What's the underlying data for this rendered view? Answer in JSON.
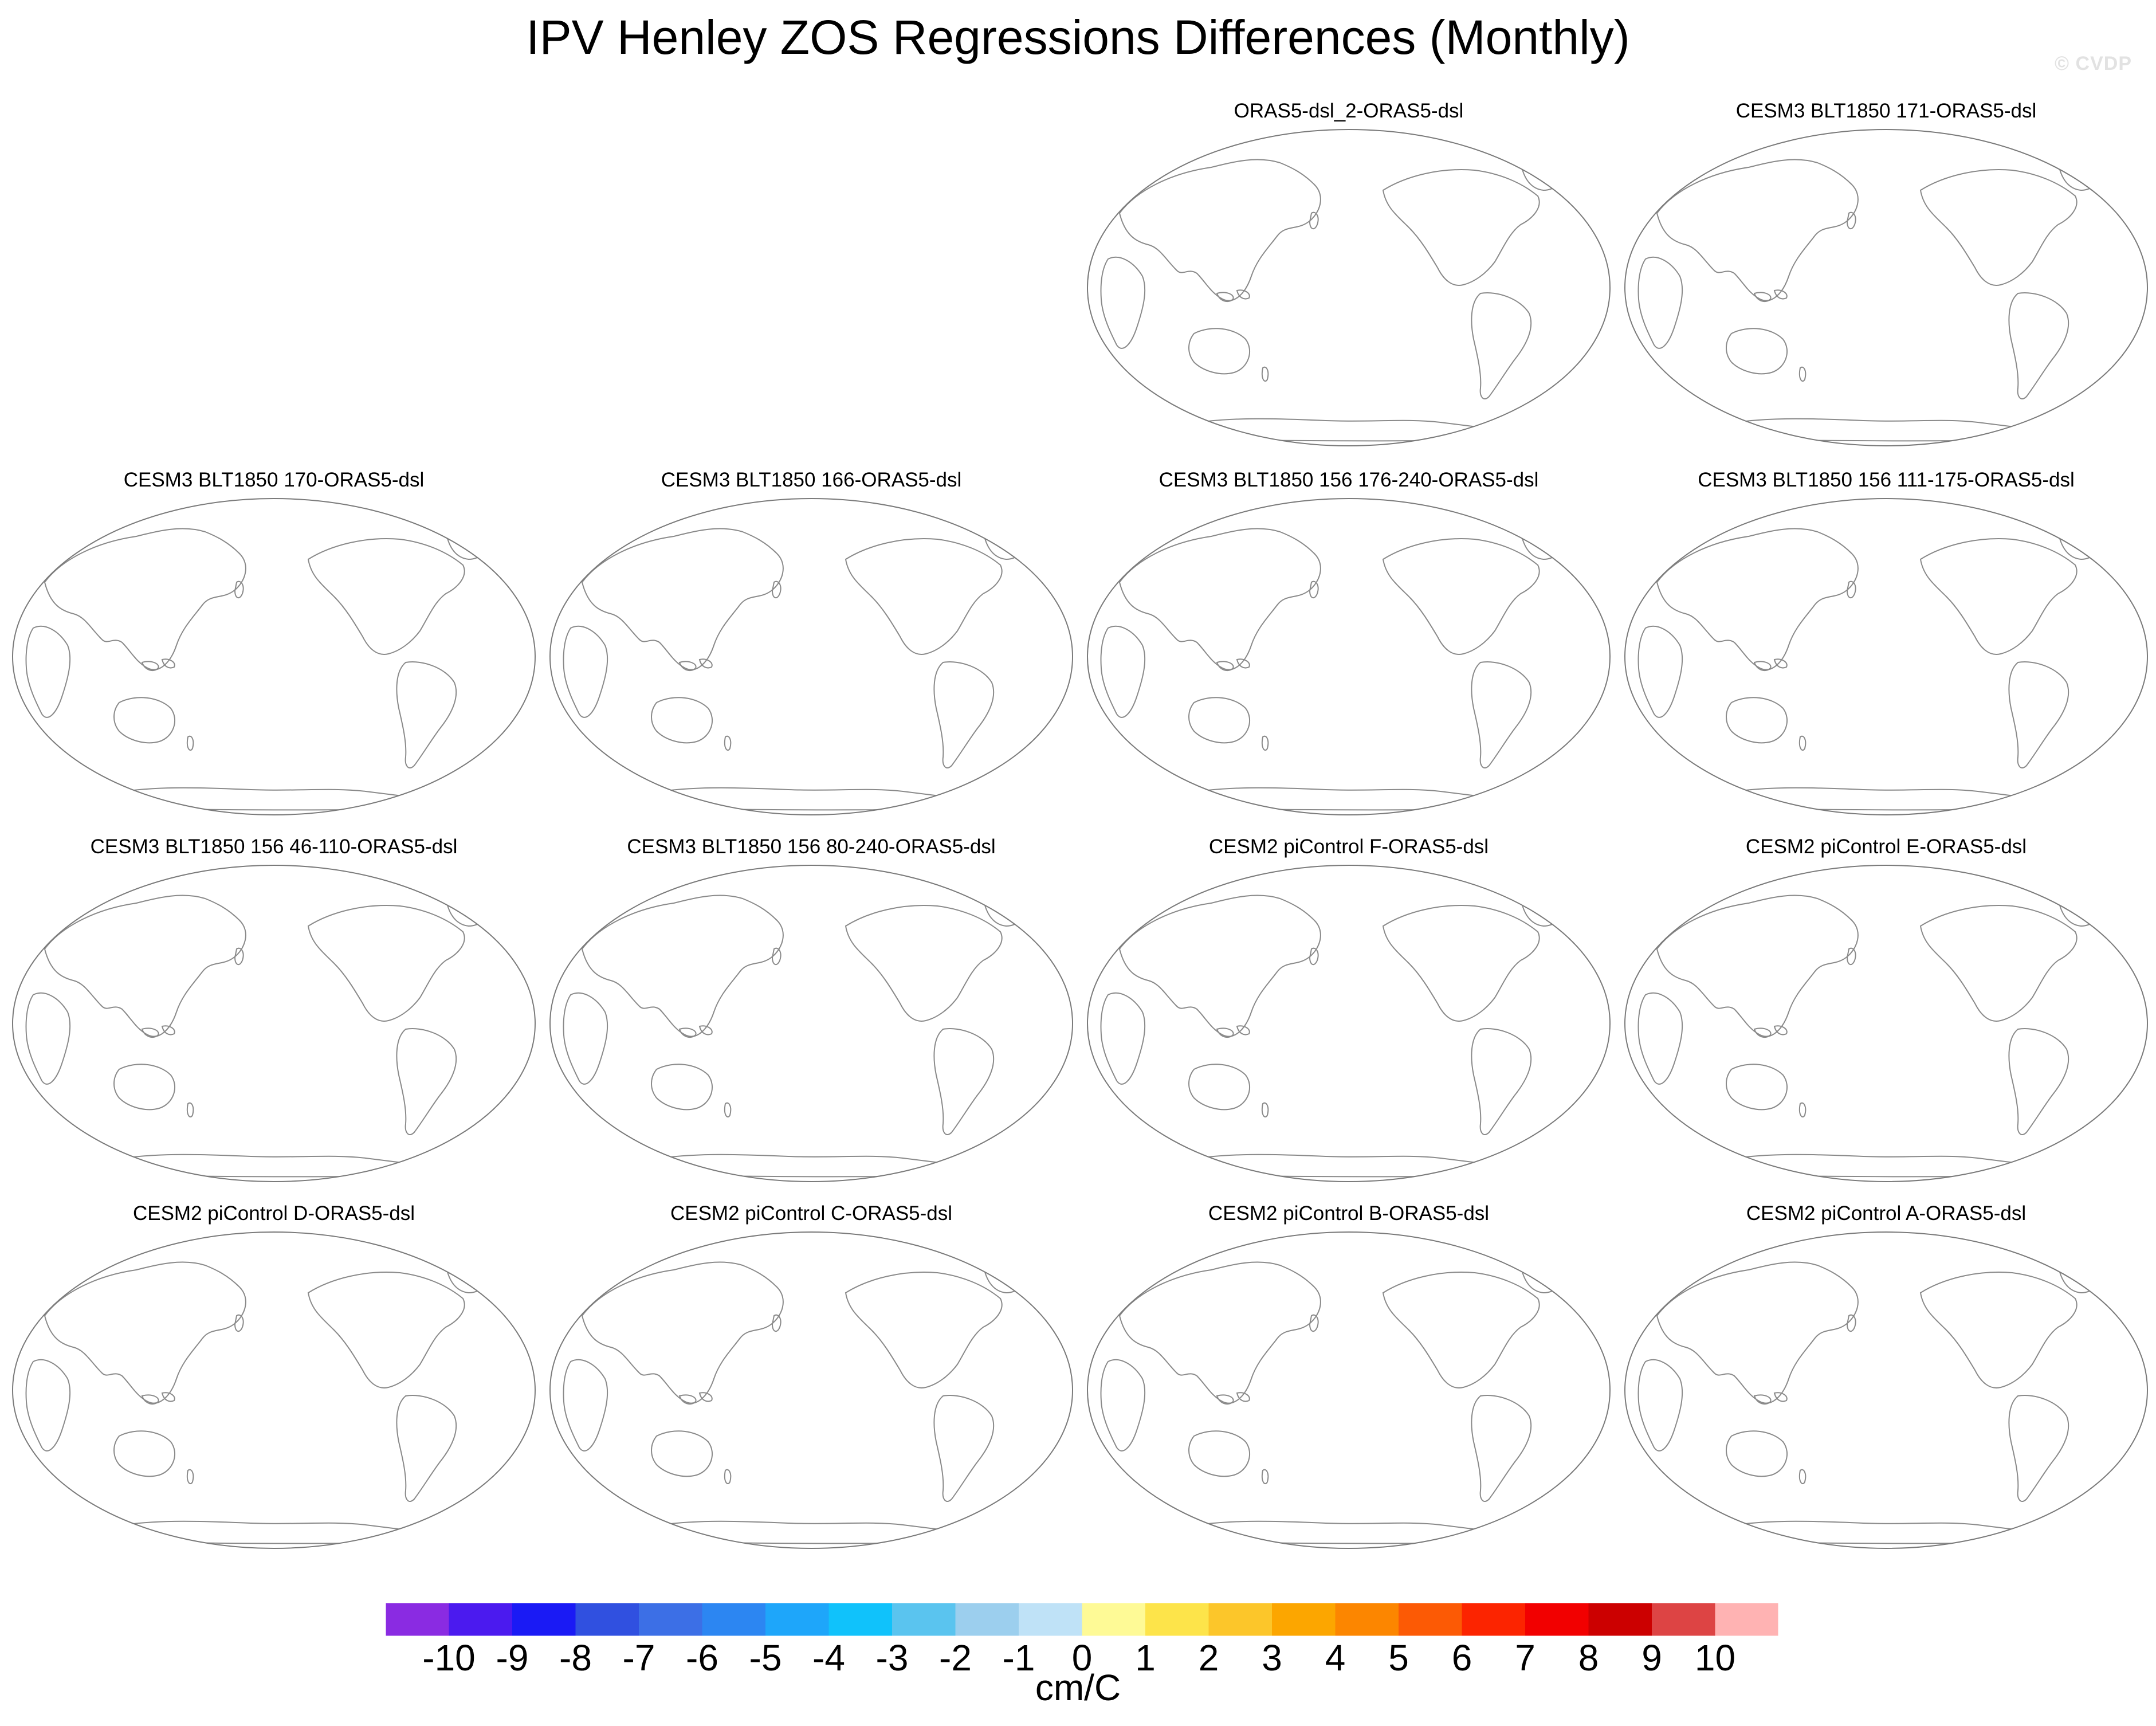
{
  "title": "IPV Henley ZOS Regressions Differences (Monthly)",
  "watermark": "© CVDP",
  "panels": [
    {
      "title": "ORAS5-dsl_2-ORAS5-dsl"
    },
    {
      "title": "CESM3 BLT1850 171-ORAS5-dsl"
    },
    {
      "title": "CESM3 BLT1850 170-ORAS5-dsl"
    },
    {
      "title": "CESM3 BLT1850 166-ORAS5-dsl"
    },
    {
      "title": "CESM3 BLT1850 156 176-240-ORAS5-dsl"
    },
    {
      "title": "CESM3 BLT1850 156 111-175-ORAS5-dsl"
    },
    {
      "title": "CESM3 BLT1850 156 46-110-ORAS5-dsl"
    },
    {
      "title": "CESM3 BLT1850 156 80-240-ORAS5-dsl"
    },
    {
      "title": "CESM2 piControl F-ORAS5-dsl"
    },
    {
      "title": "CESM2 piControl E-ORAS5-dsl"
    },
    {
      "title": "CESM2 piControl D-ORAS5-dsl"
    },
    {
      "title": "CESM2 piControl C-ORAS5-dsl"
    },
    {
      "title": "CESM2 piControl B-ORAS5-dsl"
    },
    {
      "title": "CESM2 piControl A-ORAS5-dsl"
    }
  ],
  "colorbar": {
    "unit": "cm/C",
    "labels": [
      "-10",
      "-9",
      "-8",
      "-7",
      "-6",
      "-5",
      "-4",
      "-3",
      "-2",
      "-1",
      "0",
      "1",
      "2",
      "3",
      "4",
      "5",
      "6",
      "7",
      "8",
      "9",
      "10"
    ],
    "colors": [
      "#8a2be2",
      "#4b1aef",
      "#1a1af5",
      "#3050e0",
      "#3c6fe6",
      "#2c86f2",
      "#1ea6fa",
      "#10c2fb",
      "#5ac4ef",
      "#9ccfee",
      "#bfe2f7",
      "#fefa96",
      "#fde44a",
      "#fcc62a",
      "#fca600",
      "#fc8600",
      "#fc5a05",
      "#fc2400",
      "#f20000",
      "#cc0000",
      "#dd4444",
      "#ffb3b3"
    ]
  }
}
